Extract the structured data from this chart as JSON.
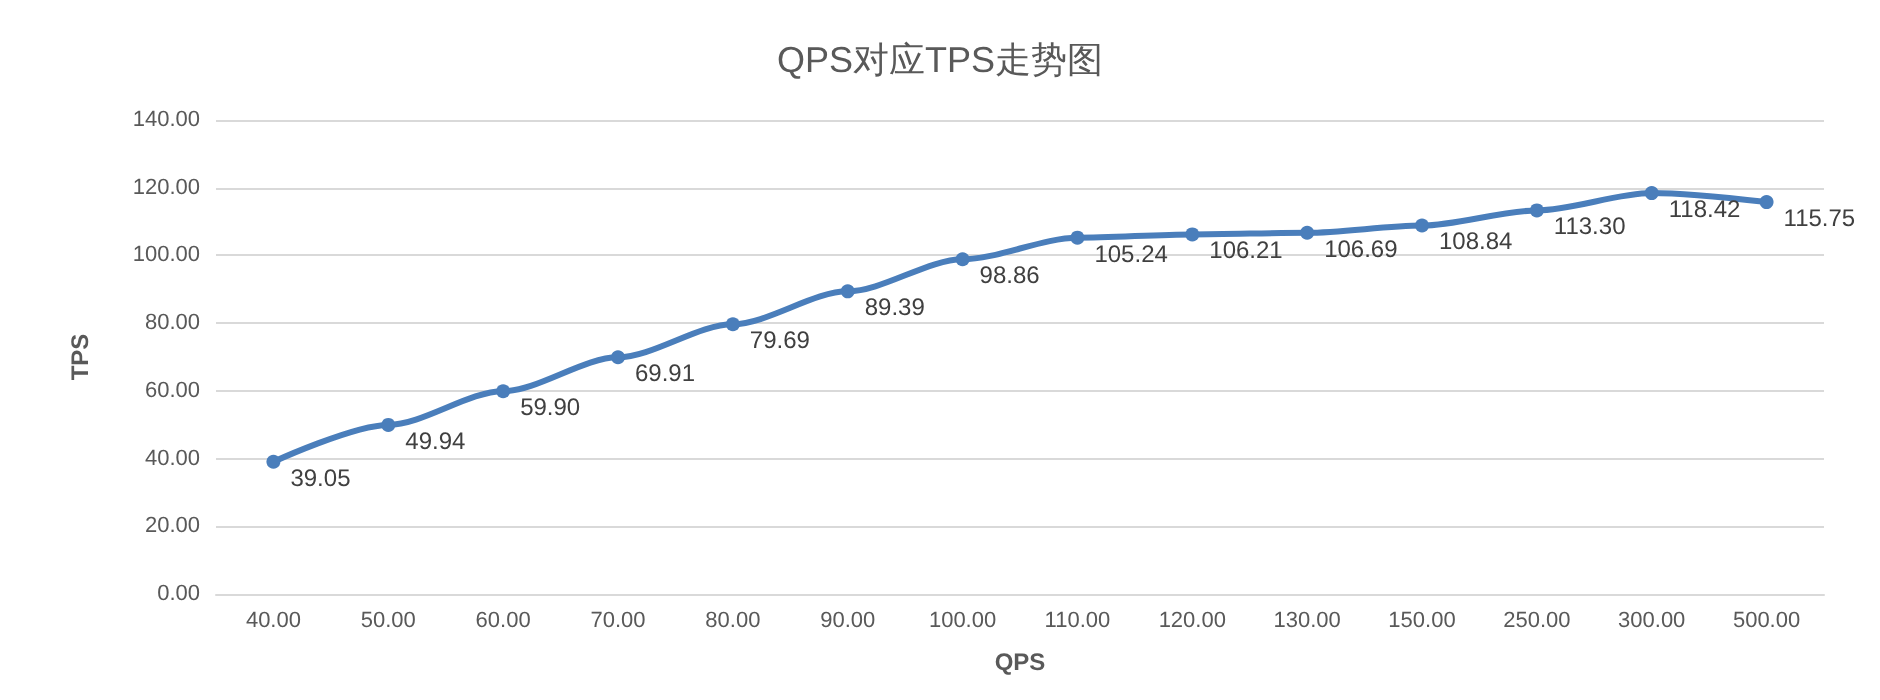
{
  "chart_data": {
    "type": "line",
    "title": "QPS对应TPS走势图",
    "xlabel": "QPS",
    "ylabel": "TPS",
    "categories": [
      "40.00",
      "50.00",
      "60.00",
      "70.00",
      "80.00",
      "90.00",
      "100.00",
      "110.00",
      "120.00",
      "130.00",
      "150.00",
      "250.00",
      "300.00",
      "500.00"
    ],
    "series": [
      {
        "color": "#4a7ebb",
        "values": [
          39.05,
          49.94,
          59.9,
          69.91,
          79.69,
          89.39,
          98.86,
          105.24,
          106.21,
          106.69,
          108.84,
          113.3,
          118.42,
          115.75
        ],
        "value_labels": [
          "39.05",
          "49.94",
          "59.90",
          "69.91",
          "79.69",
          "89.39",
          "98.86",
          "105.24",
          "106.21",
          "106.69",
          "108.84",
          "113.30",
          "118.42",
          "115.75"
        ]
      }
    ],
    "ylim": [
      0,
      140
    ],
    "yticks": [
      {
        "value": 0,
        "label": "0.00"
      },
      {
        "value": 20,
        "label": "20.00"
      },
      {
        "value": 40,
        "label": "40.00"
      },
      {
        "value": 60,
        "label": "60.00"
      },
      {
        "value": 80,
        "label": "80.00"
      },
      {
        "value": 100,
        "label": "100.00"
      },
      {
        "value": 120,
        "label": "120.00"
      },
      {
        "value": 140,
        "label": "140.00"
      }
    ],
    "grid": "y",
    "marker": "circle",
    "line_style": "solid"
  }
}
